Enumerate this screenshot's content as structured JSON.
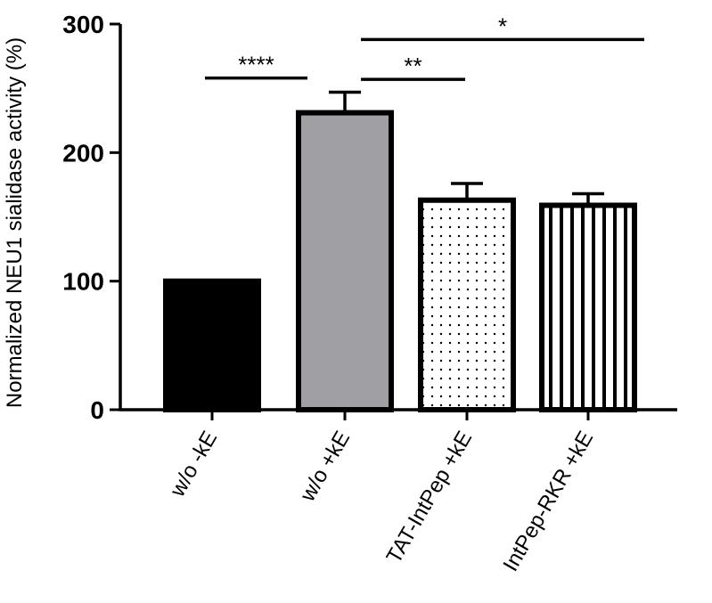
{
  "chart_data": {
    "type": "bar",
    "ylabel": "Normalized NEU1 sialidase activity (%)",
    "ylim": [
      0,
      300
    ],
    "yticks": [
      0,
      100,
      200,
      300
    ],
    "categories": [
      "w/o -kE",
      "w/o +kE",
      "TAT-IntPep +kE",
      "IntPep-RKR +kE"
    ],
    "values": [
      100,
      231,
      163,
      159
    ],
    "errors": [
      0,
      16,
      13,
      9
    ],
    "bar_fills": [
      "solid-black",
      "solid-gray",
      "dotted",
      "vertical-stripes"
    ],
    "colors": {
      "black": "#000000",
      "gray": "#a0a0a4",
      "white": "#ffffff"
    },
    "significance": [
      {
        "from": 0,
        "to": 1,
        "label": "****",
        "level": 258
      },
      {
        "from": 1,
        "to": 2,
        "label": "**",
        "level": 257
      },
      {
        "from": 1,
        "to": 3,
        "label": "*",
        "level": 288
      }
    ],
    "grid": false
  }
}
